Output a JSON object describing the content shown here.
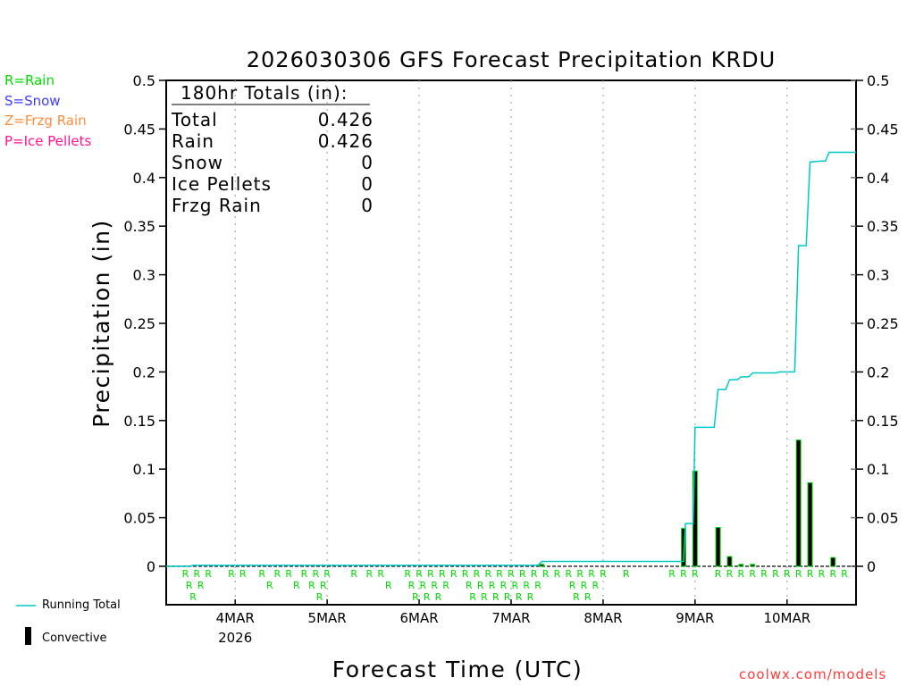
{
  "chart_data": {
    "type": "bar+line",
    "title": "2026030306 GFS Forecast Precipitation KRDU",
    "xlabel": "Forecast Time (UTC)",
    "ylabel": "Precipitation (in)",
    "xlim_hours": [
      0,
      180
    ],
    "ylim": [
      0,
      0.5
    ],
    "yticks": [
      "0",
      "0.05",
      "0.1",
      "0.15",
      "0.2",
      "0.25",
      "0.3",
      "0.35",
      "0.4",
      "0.45",
      "0.5"
    ],
    "xticks": [
      {
        "hour": 18,
        "label": "4MAR",
        "sublabel": "2026"
      },
      {
        "hour": 42,
        "label": "5MAR"
      },
      {
        "hour": 66,
        "label": "6MAR"
      },
      {
        "hour": 90,
        "label": "7MAR"
      },
      {
        "hour": 114,
        "label": "8MAR"
      },
      {
        "hour": 138,
        "label": "9MAR"
      },
      {
        "hour": 162,
        "label": "10MAR"
      }
    ],
    "grid": "vertical dotted at day boundaries",
    "running_total": {
      "name": "Running Total",
      "color": "#00c8c8",
      "points": [
        [
          0,
          0
        ],
        [
          6,
          0
        ],
        [
          7,
          0.001
        ],
        [
          97,
          0.001
        ],
        [
          98,
          0.005
        ],
        [
          135,
          0.005
        ],
        [
          135.5,
          0.044
        ],
        [
          137.5,
          0.044
        ],
        [
          138,
          0.143
        ],
        [
          143,
          0.143
        ],
        [
          144,
          0.182
        ],
        [
          146,
          0.182
        ],
        [
          147,
          0.192
        ],
        [
          149,
          0.192
        ],
        [
          150,
          0.195
        ],
        [
          152,
          0.195
        ],
        [
          153,
          0.199
        ],
        [
          159,
          0.199
        ],
        [
          160,
          0.2
        ],
        [
          164,
          0.2
        ],
        [
          165,
          0.33
        ],
        [
          167,
          0.33
        ],
        [
          168,
          0.416
        ],
        [
          171,
          0.417
        ],
        [
          172,
          0.417
        ],
        [
          173,
          0.426
        ],
        [
          180,
          0.426
        ]
      ]
    },
    "convective": {
      "name": "Convective",
      "hours": [
        98,
        135,
        138,
        144,
        147,
        150,
        153,
        165,
        168,
        174
      ],
      "values": [
        0.002,
        0.039,
        0.098,
        0.04,
        0.01,
        0.002,
        0.002,
        0.13,
        0.086,
        0.009
      ]
    },
    "precip_type_markers": {
      "symbol": "R",
      "hours": [
        5,
        6,
        7,
        8,
        9,
        11,
        17,
        20,
        25,
        27,
        29,
        32,
        34,
        36,
        38,
        39,
        40,
        41,
        42,
        49,
        53,
        56,
        58,
        63,
        64,
        65,
        66,
        67,
        68,
        69,
        70,
        71,
        72,
        73,
        75,
        78,
        79,
        80,
        81,
        82,
        83,
        84,
        85,
        86,
        87,
        88,
        89,
        90,
        91,
        92,
        93,
        94,
        95,
        96,
        97,
        99,
        102,
        105,
        106,
        107,
        108,
        109,
        110,
        111,
        112,
        114,
        120,
        132,
        135,
        138,
        144,
        147,
        150,
        153,
        156,
        159,
        162,
        165,
        168,
        171,
        174,
        177
      ]
    },
    "totals_box": {
      "heading": "180hr Totals (in):",
      "rows": [
        {
          "label": "Total",
          "value": "0.426"
        },
        {
          "label": "Rain",
          "value": "0.426"
        },
        {
          "label": "Snow",
          "value": "0"
        },
        {
          "label": "Ice Pellets",
          "value": "0"
        },
        {
          "label": "Frzg Rain",
          "value": "0"
        }
      ]
    }
  },
  "type_legend": [
    {
      "text": "R=Rain",
      "color": "#00dd00"
    },
    {
      "text": "S=Snow",
      "color": "#3c3cff"
    },
    {
      "text": "Z=Frzg Rain",
      "color": "#ff8c3c"
    },
    {
      "text": "P=Ice Pellets",
      "color": "#ff1493"
    }
  ],
  "series_legend": {
    "running_total": "Running Total",
    "convective": "Convective"
  },
  "watermark": "coolwx.com/models"
}
